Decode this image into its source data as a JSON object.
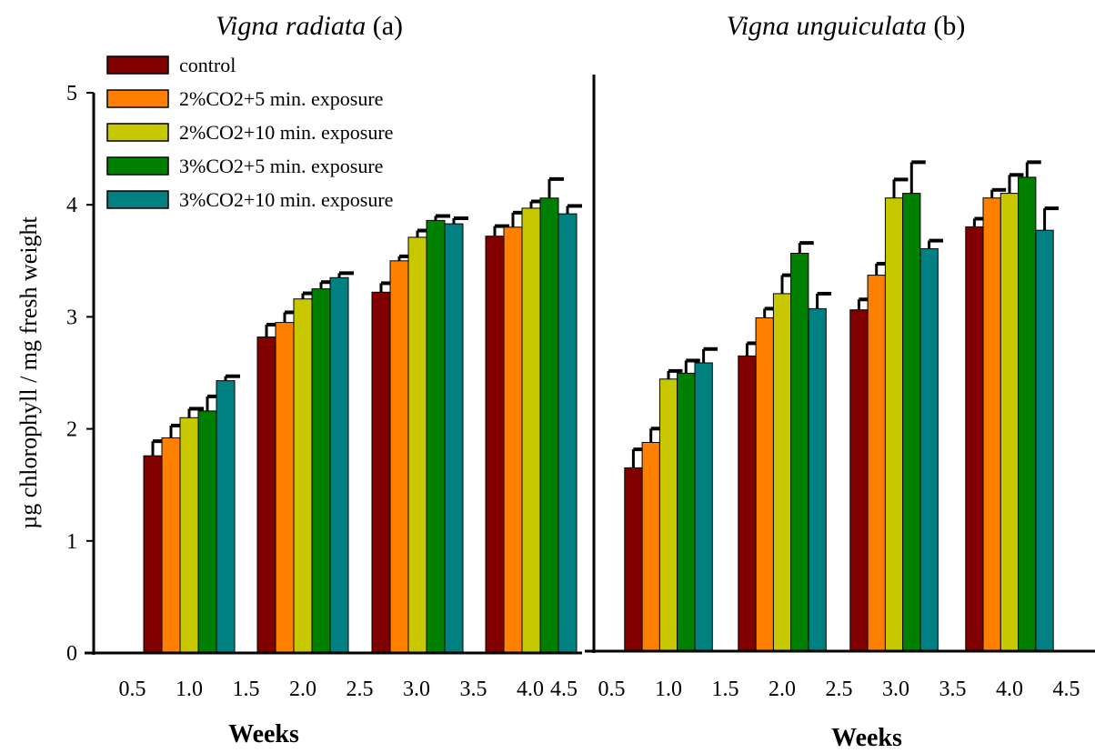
{
  "chart_data": [
    {
      "type": "bar",
      "title_species": "Vigna radiata",
      "title_suffix": " (a)",
      "xlabel": "Weeks",
      "ylabel": "µg chlorophyll / mg fresh weight",
      "ylim": [
        0,
        5
      ],
      "yticks": [
        "0",
        "1",
        "2",
        "3",
        "4",
        "5"
      ],
      "xlim": [
        0.5,
        4.5
      ],
      "xticks": [
        "0.5",
        "1.0",
        "1.5",
        "2.0",
        "2.5",
        "3.0",
        "3.5",
        "4.0",
        "4.5"
      ],
      "categories": [
        1,
        2,
        3,
        4
      ],
      "legend_position": "top-left",
      "grid": false,
      "series": [
        {
          "name": "control",
          "color": "#800000",
          "values": [
            1.76,
            2.82,
            3.22,
            3.72
          ],
          "errors": [
            0.13,
            0.11,
            0.08,
            0.09
          ]
        },
        {
          "name": "2%CO2+5 min. exposure",
          "color": "#ff8000",
          "values": [
            1.92,
            2.95,
            3.5,
            3.8
          ],
          "errors": [
            0.11,
            0.09,
            0.04,
            0.13
          ]
        },
        {
          "name": "2%CO2+10 min. exposure",
          "color": "#c8c800",
          "values": [
            2.1,
            3.16,
            3.71,
            3.97
          ],
          "errors": [
            0.08,
            0.05,
            0.06,
            0.06
          ]
        },
        {
          "name": "3%CO2+5 min. exposure",
          "color": "#008000",
          "values": [
            2.16,
            3.25,
            3.86,
            4.06
          ],
          "errors": [
            0.13,
            0.06,
            0.04,
            0.17
          ]
        },
        {
          "name": "3%CO2+10 min. exposure",
          "color": "#008080",
          "values": [
            2.43,
            3.35,
            3.83,
            3.92
          ],
          "errors": [
            0.04,
            0.04,
            0.05,
            0.07
          ]
        }
      ]
    },
    {
      "type": "bar",
      "title_species": "Vigna unguiculata",
      "title_suffix": " (b)",
      "xlabel": "Weeks",
      "ylim": [
        0,
        5
      ],
      "xlim": [
        0.5,
        4.5
      ],
      "xticks": [
        "0.5",
        "1.0",
        "1.5",
        "2.0",
        "2.5",
        "3.0",
        "3.5",
        "4.0",
        "4.5"
      ],
      "categories": [
        1,
        2,
        3,
        4
      ],
      "grid": false,
      "series": [
        {
          "color": "#800000",
          "values": [
            1.59,
            2.56,
            2.96,
            3.68
          ],
          "errors": [
            0.16,
            0.11,
            0.09,
            0.07
          ]
        },
        {
          "color": "#ff8000",
          "values": [
            1.81,
            2.89,
            3.26,
            3.93
          ],
          "errors": [
            0.12,
            0.08,
            0.1,
            0.07
          ]
        },
        {
          "color": "#c8c800",
          "values": [
            2.36,
            3.1,
            3.93,
            3.97
          ],
          "errors": [
            0.07,
            0.16,
            0.16,
            0.16
          ]
        },
        {
          "color": "#008000",
          "values": [
            2.41,
            3.45,
            3.97,
            4.11
          ],
          "errors": [
            0.11,
            0.09,
            0.27,
            0.13
          ]
        },
        {
          "color": "#008080",
          "values": [
            2.5,
            2.97,
            3.49,
            3.65
          ],
          "errors": [
            0.12,
            0.13,
            0.07,
            0.19
          ]
        }
      ]
    }
  ]
}
